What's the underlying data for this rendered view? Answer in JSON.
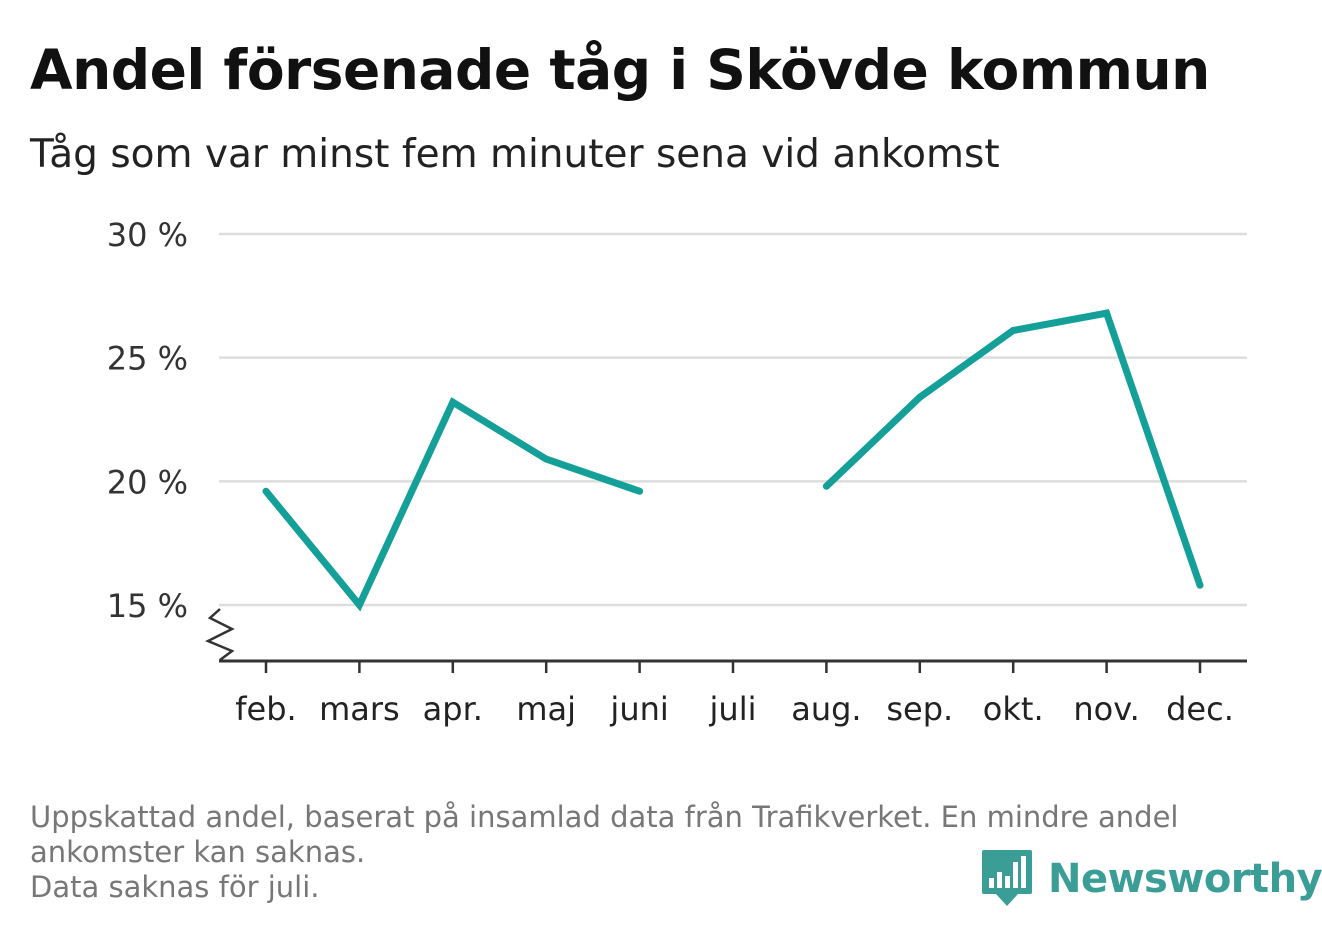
{
  "title": "Andel försenade tåg i Skövde kommun",
  "subtitle": "Tåg som var minst fem minuter sena vid ankomst",
  "footnote": {
    "line1": "Uppskattad andel, baserat på insamlad data från Trafikverket. En mindre andel",
    "line2": "ankomster kan saknas.",
    "line3": "Data saknas för juli."
  },
  "brand": {
    "name": "Newsworthy",
    "icon": "newsworthy-logo-icon",
    "color": "#3a9d96"
  },
  "chart_data": {
    "type": "line",
    "categories": [
      "feb.",
      "mars",
      "apr.",
      "maj",
      "juni",
      "juli",
      "aug.",
      "sep.",
      "okt.",
      "nov.",
      "dec."
    ],
    "series": [
      {
        "values": [
          19.6,
          15.0,
          23.2,
          20.9,
          19.6,
          null,
          19.8,
          23.4,
          26.1,
          26.8,
          15.8
        ]
      }
    ],
    "y_ticks": [
      15,
      20,
      25,
      30
    ],
    "y_tick_labels": [
      "15 %",
      "20 %",
      "25 %",
      "30 %"
    ],
    "ylim": [
      12.7,
      30
    ],
    "axis_break": true,
    "grid": true,
    "line_color": "#14a099",
    "grid_color": "#dddddd",
    "axis_color": "#333333"
  }
}
